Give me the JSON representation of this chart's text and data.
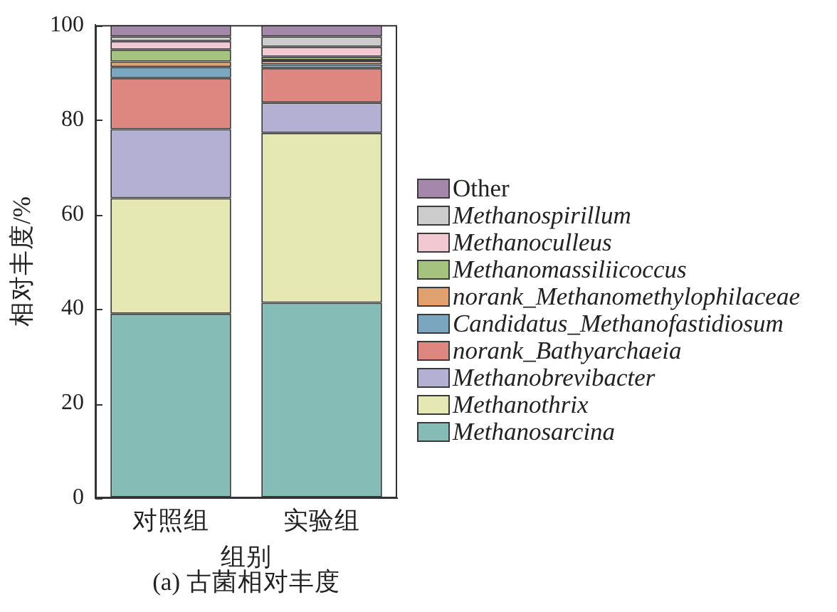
{
  "chart_data": {
    "type": "bar",
    "title": "(a) 古菌相对丰度",
    "xlabel": "组别",
    "ylabel": "相对丰度/%",
    "categories": [
      "对照组",
      "实验组"
    ],
    "stacked": true,
    "ylim": [
      0,
      100
    ],
    "yticks": [
      0,
      20,
      40,
      60,
      80,
      100
    ],
    "grid": false,
    "legend": "right",
    "series": [
      {
        "name": "Methanosarcina",
        "color": "#85bdb6",
        "values": [
          39.0,
          41.3
        ]
      },
      {
        "name": "Methanothrix",
        "color": "#e5e8b3",
        "values": [
          24.4,
          35.9
        ]
      },
      {
        "name": "Methanobrevibacter",
        "color": "#b4b0d4",
        "values": [
          14.6,
          6.4
        ]
      },
      {
        "name": "norank_Bathyarchaeia",
        "color": "#dd8780",
        "values": [
          10.8,
          7.3
        ]
      },
      {
        "name": "Candidatus_Methanofastidiosum",
        "color": "#7aa6c0",
        "values": [
          2.3,
          0.8
        ]
      },
      {
        "name": "norank_Methanomethylophilaceae",
        "color": "#e0a070",
        "values": [
          1.2,
          0.8
        ]
      },
      {
        "name": "Methanomassiliicoccus",
        "color": "#a5c27e",
        "values": [
          2.5,
          0.8
        ]
      },
      {
        "name": "Methanoculleus",
        "color": "#f2c9d3",
        "values": [
          1.8,
          2.1
        ]
      },
      {
        "name": "Methanospirillum",
        "color": "#cccccc",
        "values": [
          1.0,
          2.2
        ]
      },
      {
        "name": "Other",
        "color": "#a587ac",
        "values": [
          2.4,
          2.4
        ]
      }
    ]
  }
}
